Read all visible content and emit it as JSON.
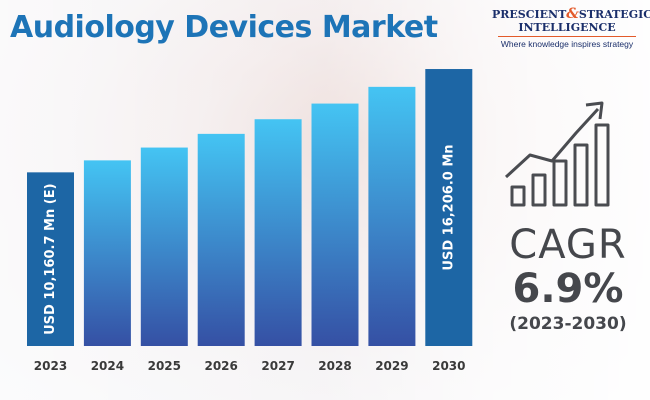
{
  "title": "Audiology Devices Market",
  "logo": {
    "word1": "PRESCIENT",
    "amp": "&",
    "word2": "STRATEGIC",
    "word3": "INTELLIGENCE",
    "tagline": "Where knowledge inspires strategy"
  },
  "colors": {
    "title": "#1d74b7",
    "bar_top": "#44c4f3",
    "bar_bottom": "#3550a4",
    "highlight_bar": "#1d66a5",
    "axis_text": "#3a3a3a",
    "cagr_text": "#45474c"
  },
  "chart_data": {
    "type": "bar",
    "title": "Audiology Devices Market",
    "xlabel": "",
    "ylabel": "",
    "categories": [
      "2023",
      "2024",
      "2025",
      "2026",
      "2027",
      "2028",
      "2029",
      "2030"
    ],
    "series": [
      {
        "values": [
          10160.7,
          10861.8,
          11611.2,
          12412.4,
          13268.9,
          14184.4,
          15163.1,
          16206.0
        ]
      }
    ],
    "data_labels": [
      {
        "category": "2023",
        "text": "USD 10,160.7 Mn (E)"
      },
      {
        "category": "2030",
        "text": "USD 16,206.0 Mn"
      }
    ],
    "ylim": [
      0,
      16500
    ],
    "grid": false,
    "legend": "none"
  },
  "cagr": {
    "label": "CAGR",
    "value": "6.9%",
    "period": "(2023-2030)"
  },
  "icon": "growth-chart-icon"
}
